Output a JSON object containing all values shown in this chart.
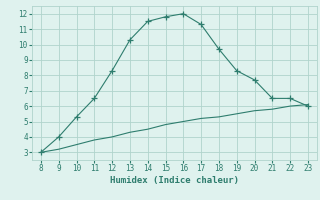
{
  "x": [
    8,
    9,
    10,
    11,
    12,
    13,
    14,
    15,
    16,
    17,
    18,
    19,
    20,
    21,
    22,
    23
  ],
  "y_upper": [
    3.0,
    4.0,
    5.3,
    6.5,
    8.3,
    10.3,
    11.5,
    11.8,
    12.0,
    11.3,
    9.7,
    8.3,
    7.7,
    6.5,
    6.5,
    6.0
  ],
  "y_lower": [
    3.0,
    3.2,
    3.5,
    3.8,
    4.0,
    4.3,
    4.5,
    4.8,
    5.0,
    5.2,
    5.3,
    5.5,
    5.7,
    5.8,
    6.0,
    6.1
  ],
  "line_color": "#2e7d6e",
  "bg_color": "#dff2ee",
  "grid_color": "#b0d4cc",
  "xlabel": "Humidex (Indice chaleur)",
  "xlim": [
    7.5,
    23.5
  ],
  "ylim": [
    2.5,
    12.5
  ],
  "xticks": [
    8,
    9,
    10,
    11,
    12,
    13,
    14,
    15,
    16,
    17,
    18,
    19,
    20,
    21,
    22,
    23
  ],
  "yticks": [
    3,
    4,
    5,
    6,
    7,
    8,
    9,
    10,
    11,
    12
  ],
  "marker": "+"
}
